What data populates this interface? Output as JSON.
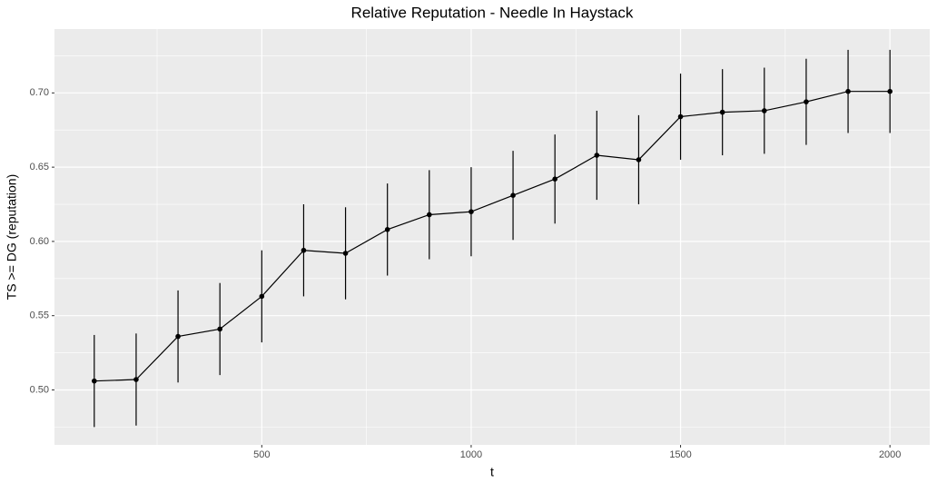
{
  "chart_data": {
    "type": "line",
    "title": "Relative Reputation - Needle In Haystack",
    "x_label": "t",
    "y_label": "TS  >=  DG (reputation)",
    "x": [
      100,
      200,
      300,
      400,
      500,
      600,
      700,
      800,
      900,
      1000,
      1100,
      1200,
      1300,
      1400,
      1500,
      1600,
      1700,
      1800,
      1900,
      2000
    ],
    "series": [
      {
        "color": "#000000",
        "values": [
          0.506,
          0.507,
          0.536,
          0.541,
          0.563,
          0.594,
          0.592,
          0.608,
          0.618,
          0.62,
          0.631,
          0.642,
          0.658,
          0.655,
          0.684,
          0.687,
          0.688,
          0.694,
          0.701,
          0.701
        ],
        "errors": [
          0.031,
          0.031,
          0.031,
          0.031,
          0.031,
          0.031,
          0.031,
          0.031,
          0.03,
          0.03,
          0.03,
          0.03,
          0.03,
          0.03,
          0.029,
          0.029,
          0.029,
          0.029,
          0.028,
          0.028
        ]
      }
    ],
    "xlim": [
      5,
      2095
    ],
    "ylim": [
      0.463,
      0.743
    ],
    "xticks": [
      500,
      1000,
      1500,
      2000
    ],
    "yticks": [
      {
        "value": 0.5,
        "label": "0.50"
      },
      {
        "value": 0.55,
        "label": "0.55"
      },
      {
        "value": 0.6,
        "label": "0.60"
      },
      {
        "value": 0.65,
        "label": "0.65"
      },
      {
        "value": 0.7,
        "label": "0.70"
      }
    ],
    "grid": true
  }
}
